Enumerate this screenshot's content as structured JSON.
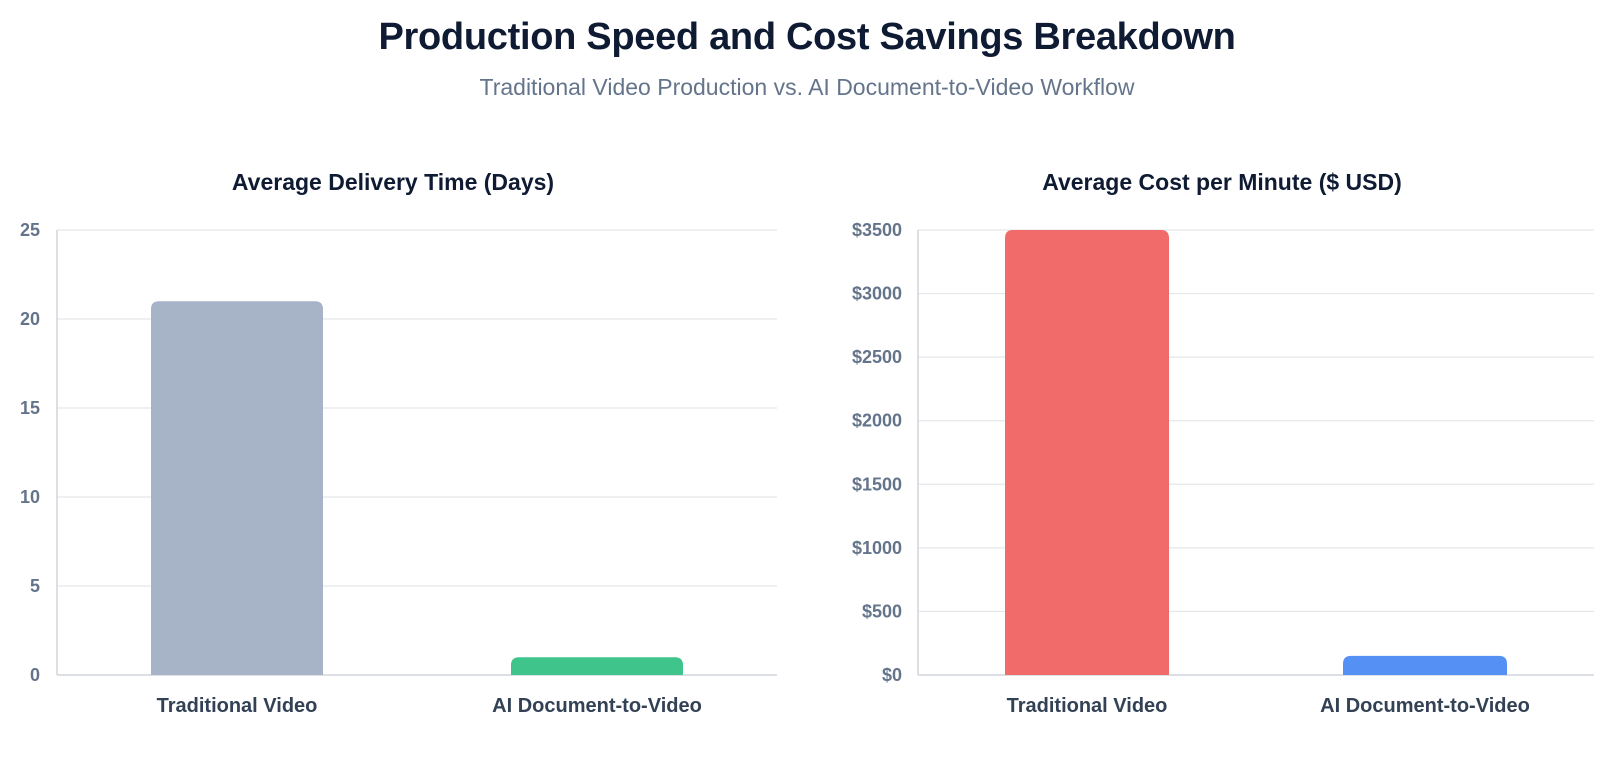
{
  "header": {
    "title": "Production Speed and Cost Savings Breakdown",
    "subtitle": "Traditional Video Production vs. AI Document-to-Video Workflow"
  },
  "chart_data": [
    {
      "type": "bar",
      "title": "Average Delivery Time (Days)",
      "categories": [
        "Traditional Video",
        "AI Document-to-Video"
      ],
      "values": [
        21,
        1
      ],
      "ylim": [
        0,
        25
      ],
      "yticks": [
        0,
        5,
        10,
        15,
        20,
        25
      ],
      "ytick_labels": [
        "0",
        "5",
        "10",
        "15",
        "20",
        "25"
      ],
      "colors": [
        "#a7b3c7",
        "#3fc48b"
      ],
      "grid": true,
      "legend": "none"
    },
    {
      "type": "bar",
      "title": "Average Cost per Minute ($ USD)",
      "categories": [
        "Traditional Video",
        "AI Document-to-Video"
      ],
      "values": [
        3500,
        150
      ],
      "ylim": [
        0,
        3500
      ],
      "yticks": [
        0,
        500,
        1000,
        1500,
        2000,
        2500,
        3000,
        3500
      ],
      "ytick_labels": [
        "$0",
        "$500",
        "$1000",
        "$1500",
        "$2000",
        "$2500",
        "$3000",
        "$3500"
      ],
      "colors": [
        "#f26b6b",
        "#5591f5"
      ],
      "grid": true,
      "legend": "none"
    }
  ]
}
